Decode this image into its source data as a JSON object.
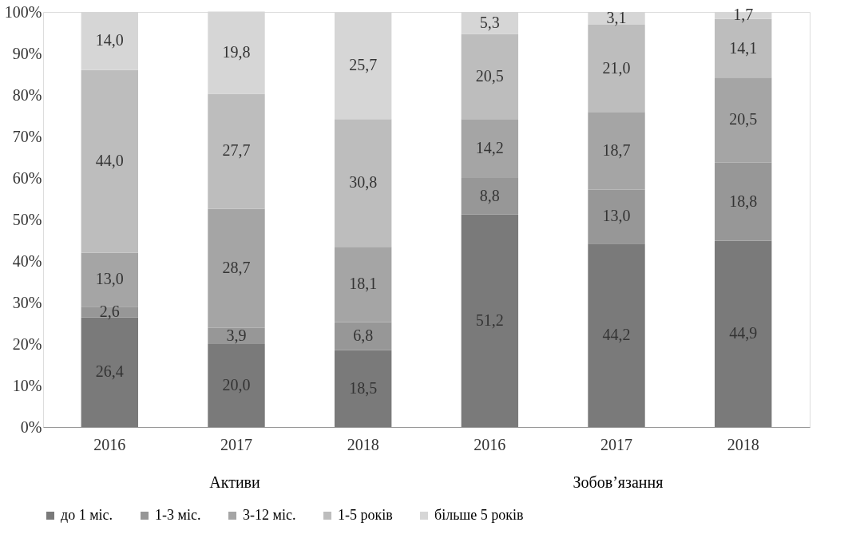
{
  "chart_data": {
    "type": "bar",
    "stacked": true,
    "categories": [
      "2016",
      "2017",
      "2018",
      "2016",
      "2017",
      "2018"
    ],
    "series": [
      {
        "name": "до 1 міс.",
        "color": "#7a7a7a",
        "values": [
          26.4,
          20.0,
          18.5,
          51.2,
          44.2,
          44.9
        ],
        "value_labels": [
          "26,4",
          "20,0",
          "18,5",
          "51,2",
          "44,2",
          "44,9"
        ]
      },
      {
        "name": "1-3 міс.",
        "color": "#979797",
        "values": [
          2.6,
          3.9,
          6.8,
          8.8,
          13.0,
          18.8
        ],
        "value_labels": [
          "2,6",
          "3,9",
          "6,8",
          "8,8",
          "13,0",
          "18,8"
        ]
      },
      {
        "name": "3-12 міс.",
        "color": "#a5a5a5",
        "values": [
          13.0,
          28.7,
          18.1,
          14.2,
          18.7,
          20.5
        ],
        "value_labels": [
          "13,0",
          "28,7",
          "18,1",
          "14,2",
          "18,7",
          "20,5"
        ]
      },
      {
        "name": "1-5 років",
        "color": "#bdbdbd",
        "values": [
          44.0,
          27.7,
          30.8,
          20.5,
          21.0,
          14.1
        ],
        "value_labels": [
          "44,0",
          "27,7",
          "30,8",
          "20,5",
          "21,0",
          "14,1"
        ]
      },
      {
        "name": "більше 5 років",
        "color": "#d6d6d6",
        "values": [
          14.0,
          19.8,
          25.7,
          5.3,
          3.1,
          1.7
        ],
        "value_labels": [
          "14,0",
          "19,8",
          "25,7",
          "5,3",
          "3,1",
          "1,7"
        ]
      }
    ],
    "ylim": [
      0,
      100
    ],
    "yticks": [
      {
        "value": 0,
        "label": "0%"
      },
      {
        "value": 10,
        "label": "10%"
      },
      {
        "value": 20,
        "label": "20%"
      },
      {
        "value": 30,
        "label": "30%"
      },
      {
        "value": 40,
        "label": "40%"
      },
      {
        "value": 50,
        "label": "50%"
      },
      {
        "value": 60,
        "label": "60%"
      },
      {
        "value": 70,
        "label": "70%"
      },
      {
        "value": 80,
        "label": "80%"
      },
      {
        "value": 90,
        "label": "90%"
      },
      {
        "value": 100,
        "label": "100%"
      }
    ],
    "annotations": [
      "Активи",
      "Зобов’язання"
    ],
    "legend": "bottom",
    "grid": false
  }
}
